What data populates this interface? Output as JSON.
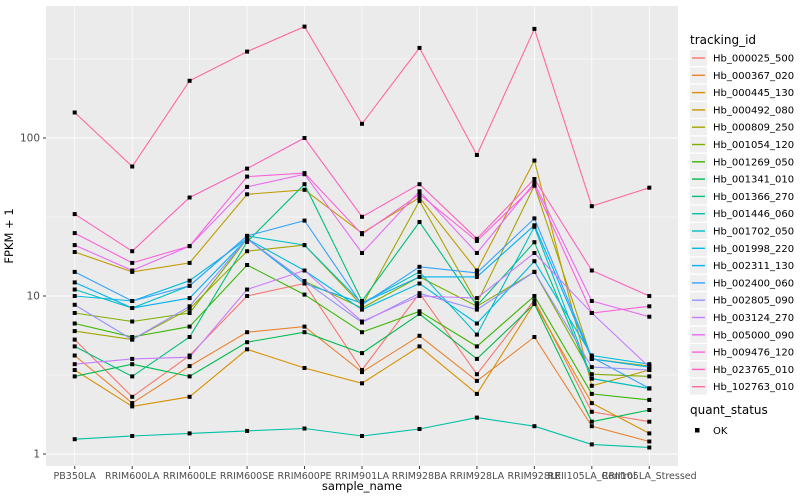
{
  "chart_data": {
    "type": "line",
    "title": "",
    "xlabel": "sample_name",
    "ylabel": "FPKM + 1",
    "y_scale": "log10",
    "y_ticks": [
      1,
      10,
      100
    ],
    "y_tick_labels": [
      "1",
      "10",
      "100"
    ],
    "ylim": [
      1,
      700
    ],
    "grid": true,
    "legend_position": "right",
    "legend_title": "tracking_id",
    "shape_legend_title": "quant_status",
    "shape_legend_items": [
      {
        "label": "OK",
        "marker": "filled-black-square"
      }
    ],
    "point_shape": "filled-square",
    "categories": [
      "PB350LA",
      "RRIM600LA",
      "RRIM600LE",
      "RRIM600SE",
      "RRIM600PE",
      "RRIM901LA",
      "RRIM928BA",
      "RRIM928LA",
      "RRIM928LE",
      "RRII105LA_Control",
      "RRII105LA_Stressed"
    ],
    "series": [
      {
        "name": "Hb_000025_500",
        "color": "#F8766D",
        "values": [
          5.3,
          2.3,
          4.2,
          10.0,
          12.0,
          3.4,
          10.4,
          3.2,
          9.4,
          1.85,
          1.6
        ]
      },
      {
        "name": "Hb_000367_020",
        "color": "#EA8331",
        "values": [
          4.2,
          2.1,
          3.6,
          5.9,
          6.4,
          3.3,
          5.6,
          2.9,
          5.5,
          1.5,
          1.2
        ]
      },
      {
        "name": "Hb_000445_130",
        "color": "#D89000",
        "values": [
          3.4,
          2.0,
          2.3,
          4.6,
          3.5,
          2.8,
          4.8,
          2.4,
          9.0,
          2.1,
          1.35
        ]
      },
      {
        "name": "Hb_000492_080",
        "color": "#C09B00",
        "values": [
          19,
          14.2,
          16.2,
          44,
          47,
          25,
          42,
          14.5,
          72,
          2.7,
          3.4
        ]
      },
      {
        "name": "Hb_000809_250",
        "color": "#A3A500",
        "values": [
          6.0,
          5.3,
          8.3,
          19.2,
          21,
          8.7,
          40,
          9.0,
          50,
          4.0,
          3.6
        ]
      },
      {
        "name": "Hb_001054_120",
        "color": "#7CAE00",
        "values": [
          7.8,
          6.9,
          7.8,
          23,
          12.4,
          8.4,
          13.2,
          8.6,
          14.2,
          3.2,
          3.1
        ]
      },
      {
        "name": "Hb_001269_050",
        "color": "#39B600",
        "values": [
          6.7,
          5.5,
          6.4,
          15.7,
          10.2,
          5.9,
          8.0,
          4.8,
          10.0,
          2.4,
          2.2
        ]
      },
      {
        "name": "Hb_001341_010",
        "color": "#00BB4E",
        "values": [
          3.1,
          3.7,
          3.1,
          5.1,
          5.9,
          4.35,
          7.7,
          4.0,
          8.9,
          1.6,
          1.9
        ]
      },
      {
        "name": "Hb_001366_270",
        "color": "#00BF7D",
        "values": [
          4.8,
          3.1,
          5.5,
          22,
          51,
          9.3,
          29.4,
          8.7,
          21.9,
          3.0,
          2.6
        ]
      },
      {
        "name": "Hb_001446_060",
        "color": "#00C1A3",
        "values": [
          1.24,
          1.3,
          1.35,
          1.4,
          1.45,
          1.3,
          1.44,
          1.7,
          1.5,
          1.15,
          1.1
        ]
      },
      {
        "name": "Hb_001702_050",
        "color": "#00BFC4",
        "values": [
          11,
          8.4,
          11.6,
          24,
          21,
          9.0,
          14.2,
          5.7,
          27.4,
          3.0,
          2.6
        ]
      },
      {
        "name": "Hb_001998_220",
        "color": "#00BAE0",
        "values": [
          10,
          9.3,
          12.5,
          23,
          14.5,
          8.2,
          12.0,
          6.7,
          16.6,
          4.2,
          3.7
        ]
      },
      {
        "name": "Hb_002311_130",
        "color": "#00B0F6",
        "values": [
          12.2,
          8.4,
          9.7,
          23,
          12.0,
          9.0,
          13.2,
          13.2,
          28,
          4.0,
          3.55
        ]
      },
      {
        "name": "Hb_002400_060",
        "color": "#35A2FF",
        "values": [
          14.2,
          9.3,
          11.6,
          24,
          30,
          8.8,
          15.3,
          14.0,
          31,
          4.1,
          2.6
        ]
      },
      {
        "name": "Hb_002805_090",
        "color": "#9590FF",
        "values": [
          8.8,
          5.3,
          8.6,
          23,
          12.4,
          6.8,
          10.4,
          8.2,
          14.2,
          3.55,
          3.4
        ]
      },
      {
        "name": "Hb_003124_270",
        "color": "#C77CFF",
        "values": [
          3.7,
          4.0,
          4.1,
          11.0,
          14.5,
          6.9,
          10.0,
          9.7,
          18.7,
          7.8,
          3.55
        ]
      },
      {
        "name": "Hb_005000_090",
        "color": "#E76BF3",
        "values": [
          21,
          14.5,
          20.7,
          49,
          59,
          18.7,
          46,
          18.7,
          52,
          9.3,
          7.4
        ]
      },
      {
        "name": "Hb_009476_120",
        "color": "#FA62DB",
        "values": [
          25,
          16.2,
          20.7,
          57,
          60,
          24.6,
          44,
          22.3,
          50,
          7.8,
          8.6
        ]
      },
      {
        "name": "Hb_023765_010",
        "color": "#FF62BC",
        "values": [
          33,
          19.2,
          42,
          64,
          100,
          31.7,
          51,
          23,
          55,
          14.5,
          10.0
        ]
      },
      {
        "name": "Hb_102763_010",
        "color": "#FF6A98",
        "values": [
          145,
          66,
          230,
          352,
          507,
          123,
          372,
          78,
          490,
          37,
          48.5
        ]
      }
    ],
    "colors": {
      "panel_bg": "#EBEBEB",
      "grid": "#FFFFFF",
      "point": "#000000",
      "tick_label": "#4D4D4D",
      "axis_text": "#000000",
      "legend_key_bg": "#EFEFEF"
    }
  }
}
